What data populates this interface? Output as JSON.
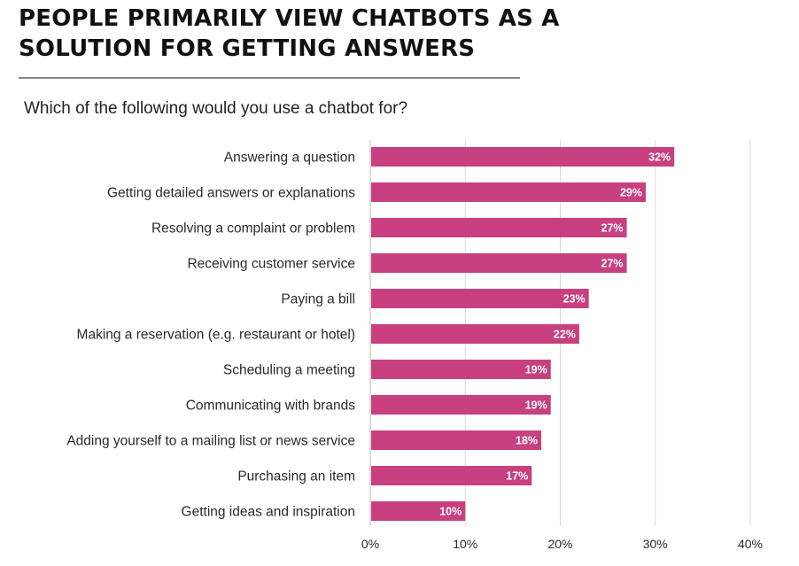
{
  "header": {
    "title_line1": "PEOPLE PRIMARILY VIEW CHATBOTS AS A",
    "title_line2": "SOLUTION FOR GETTING ANSWERS",
    "subtitle": "Which of the following would you use a chatbot for?"
  },
  "colors": {
    "bar": "#c8407f",
    "grid": "#d9d9d9",
    "axis": "#bdbdbd"
  },
  "chart_data": {
    "type": "bar",
    "orientation": "horizontal",
    "title": "PEOPLE PRIMARILY VIEW CHATBOTS AS A SOLUTION FOR GETTING ANSWERS",
    "subtitle": "Which of the following would you use a chatbot for?",
    "categories": [
      "Answering a question",
      "Getting detailed answers or explanations",
      "Resolving a complaint or problem",
      "Receiving customer service",
      "Paying a bill",
      "Making a reservation (e.g. restaurant or hotel)",
      "Scheduling a meeting",
      "Communicating with brands",
      "Adding yourself to a mailing list or news service",
      "Purchasing an item",
      "Getting ideas and inspiration"
    ],
    "values": [
      32,
      29,
      27,
      27,
      23,
      22,
      19,
      19,
      18,
      17,
      10
    ],
    "data_labels": [
      "32%",
      "29%",
      "27%",
      "27%",
      "23%",
      "22%",
      "19%",
      "19%",
      "18%",
      "17%",
      "10%"
    ],
    "xlim": [
      0,
      40
    ],
    "xticks": [
      0,
      10,
      20,
      30,
      40
    ],
    "xtick_labels": [
      "0%",
      "10%",
      "20%",
      "30%",
      "40%"
    ],
    "xlabel": "",
    "ylabel": "",
    "grid": true,
    "legend": "none"
  }
}
